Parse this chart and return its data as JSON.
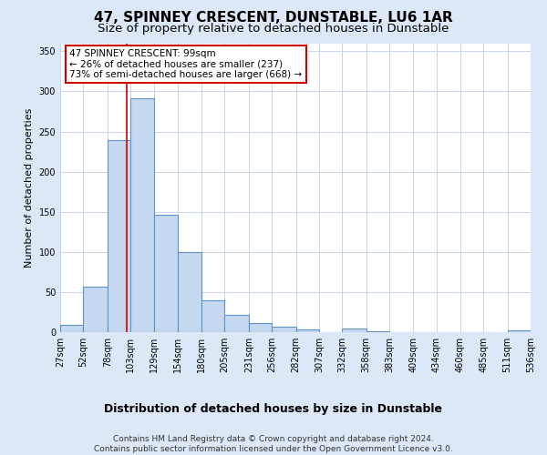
{
  "title": "47, SPINNEY CRESCENT, DUNSTABLE, LU6 1AR",
  "subtitle": "Size of property relative to detached houses in Dunstable",
  "xlabel": "Distribution of detached houses by size in Dunstable",
  "ylabel": "Number of detached properties",
  "bin_edges": [
    27,
    52,
    78,
    103,
    129,
    154,
    180,
    205,
    231,
    256,
    282,
    307,
    332,
    358,
    383,
    409,
    434,
    460,
    485,
    511,
    536
  ],
  "bar_heights": [
    9,
    57,
    239,
    291,
    146,
    100,
    40,
    21,
    11,
    7,
    3,
    0,
    5,
    1,
    0,
    0,
    0,
    0,
    0,
    2
  ],
  "bar_color": "#c5d8f0",
  "bar_edge_color": "#6090c8",
  "bar_edge_width": 0.8,
  "property_line_x": 99,
  "property_line_color": "#cc0000",
  "annotation_text": "47 SPINNEY CRESCENT: 99sqm\n← 26% of detached houses are smaller (237)\n73% of semi-detached houses are larger (668) →",
  "annotation_box_color": "#ffffff",
  "annotation_box_edge_color": "#cc0000",
  "ylim": [
    0,
    360
  ],
  "yticks": [
    0,
    50,
    100,
    150,
    200,
    250,
    300,
    350
  ],
  "tick_labels": [
    "27sqm",
    "52sqm",
    "78sqm",
    "103sqm",
    "129sqm",
    "154sqm",
    "180sqm",
    "205sqm",
    "231sqm",
    "256sqm",
    "282sqm",
    "307sqm",
    "332sqm",
    "358sqm",
    "383sqm",
    "409sqm",
    "434sqm",
    "460sqm",
    "485sqm",
    "511sqm",
    "536sqm"
  ],
  "grid_color": "#c8d4e8",
  "figure_background_color": "#dce8f8",
  "plot_background_color": "#ffffff",
  "footer_line1": "Contains HM Land Registry data © Crown copyright and database right 2024.",
  "footer_line2": "Contains public sector information licensed under the Open Government Licence v3.0.",
  "title_fontsize": 11,
  "subtitle_fontsize": 9.5,
  "xlabel_fontsize": 9,
  "ylabel_fontsize": 8,
  "tick_fontsize": 7,
  "footer_fontsize": 6.5,
  "annotation_fontsize": 7.5
}
